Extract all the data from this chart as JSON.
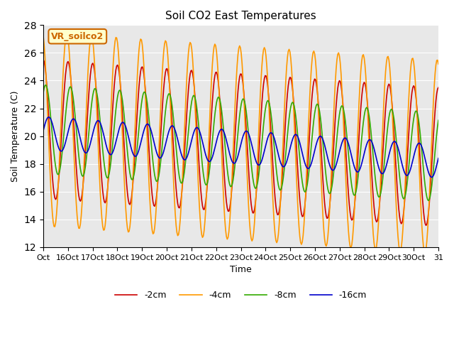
{
  "title": "Soil CO2 East Temperatures",
  "xlabel": "Time",
  "ylabel": "Soil Temperature (C)",
  "ylim": [
    12,
    28
  ],
  "yticks": [
    12,
    14,
    16,
    18,
    20,
    22,
    24,
    26,
    28
  ],
  "colors": {
    "2cm": "#cc0000",
    "4cm": "#ff9900",
    "8cm": "#33aa00",
    "16cm": "#0000cc"
  },
  "legend_labels": [
    "-2cm",
    "-4cm",
    "-8cm",
    "-16cm"
  ],
  "background_color": "#e8e8e8",
  "annotation_text": "VR_soilco2",
  "annotation_bg": "#ffffcc",
  "annotation_border": "#cc6600",
  "tick_labels": [
    "Oct",
    "16Oct",
    "17Oct",
    "18Oct",
    "19Oct",
    "20Oct",
    "21Oct",
    "22Oct",
    "23Oct",
    "24Oct",
    "25Oct",
    "26Oct",
    "27Oct",
    "28Oct",
    "29Oct",
    "30Oct",
    "31"
  ],
  "num_points": 480,
  "days": 16.0,
  "mean_2cm": 20.5,
  "amp_2cm": 5.0,
  "mean_4cm": 20.5,
  "amp_4cm": 7.0,
  "mean_8cm": 20.5,
  "amp_8cm": 3.2,
  "mean_16cm": 20.2,
  "amp_16cm": 1.2,
  "phase_2cm": 1.57,
  "phase_4cm": 1.87,
  "phase_8cm": 0.97,
  "phase_16cm": 0.17,
  "trend": -2.0
}
